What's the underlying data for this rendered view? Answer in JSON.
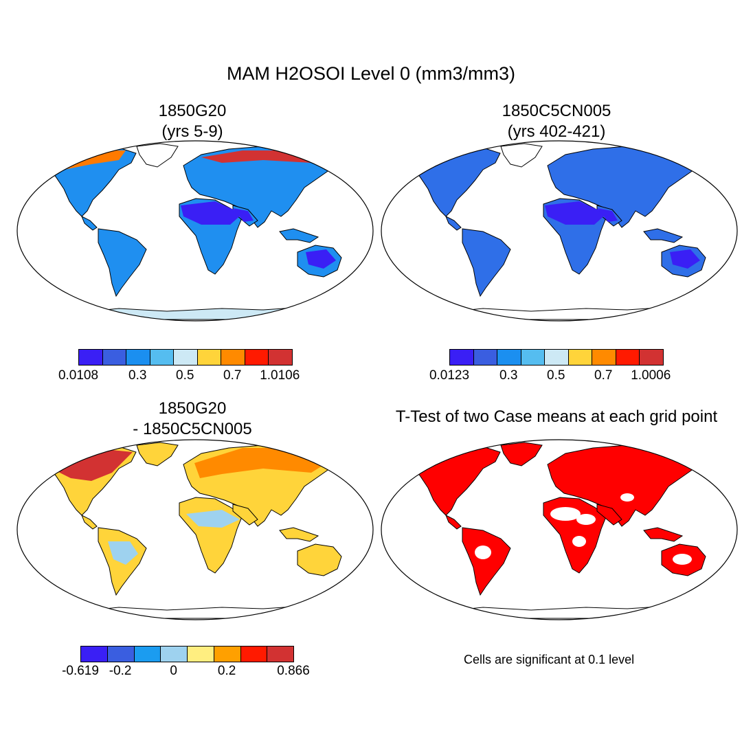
{
  "title": "MAM H2OSOI Level 0 (mm3/mm3)",
  "panels": {
    "top_left": {
      "title1": "1850G20",
      "title2": "(yrs 5-9)"
    },
    "top_right": {
      "title1": "1850C5CN005",
      "title2": "(yrs 402-421)"
    },
    "bottom_left": {
      "title1": "1850G20",
      "title2": "- 1850C5CN005"
    },
    "bottom_right": {
      "title1": "T-Test of two Case means at each grid point",
      "note": "Cells are significant at 0.1 level"
    }
  },
  "colorbars": {
    "field_left": {
      "colors": [
        "#3a1ff5",
        "#3a5ee0",
        "#1b8ff0",
        "#55bdf0",
        "#cde9f5",
        "#ffd43a",
        "#ff8a00",
        "#ff1a00",
        "#d23232"
      ],
      "labels": [
        "0.0108",
        "0.3",
        "0.5",
        "0.7",
        "1.0106"
      ],
      "label_positions": [
        0,
        2.5,
        4.5,
        6.5,
        8.5
      ]
    },
    "field_right": {
      "colors": [
        "#3a1ff5",
        "#3a5ee0",
        "#1b8ff0",
        "#55bdf0",
        "#cde9f5",
        "#ffd43a",
        "#ff8a00",
        "#ff1a00",
        "#d23232"
      ],
      "labels": [
        "0.0123",
        "0.3",
        "0.5",
        "0.7",
        "1.0006"
      ],
      "label_positions": [
        0,
        2.5,
        4.5,
        6.5,
        8.5
      ]
    },
    "difference": {
      "colors": [
        "#3a1ff5",
        "#3a5ee0",
        "#1b9cf0",
        "#9ed2ef",
        "#ffee80",
        "#ffa000",
        "#ff1a00",
        "#d23232"
      ],
      "labels": [
        "-0.619",
        "-0.2",
        "0",
        "0.2",
        "0.866"
      ],
      "label_positions": [
        0,
        1.5,
        3.5,
        5.5,
        8
      ]
    }
  },
  "map_colors": {
    "land_left": "#1f8ff0",
    "land_right": "#2f6fe8",
    "land_diff": "#ffd43a",
    "land_ttest": "#ff0000",
    "desert_low": "#3a1ff5",
    "high_left": "#ff7a00",
    "high_diff": "#d23232",
    "light_diff": "#9ed2ef",
    "coast": "#000000"
  }
}
